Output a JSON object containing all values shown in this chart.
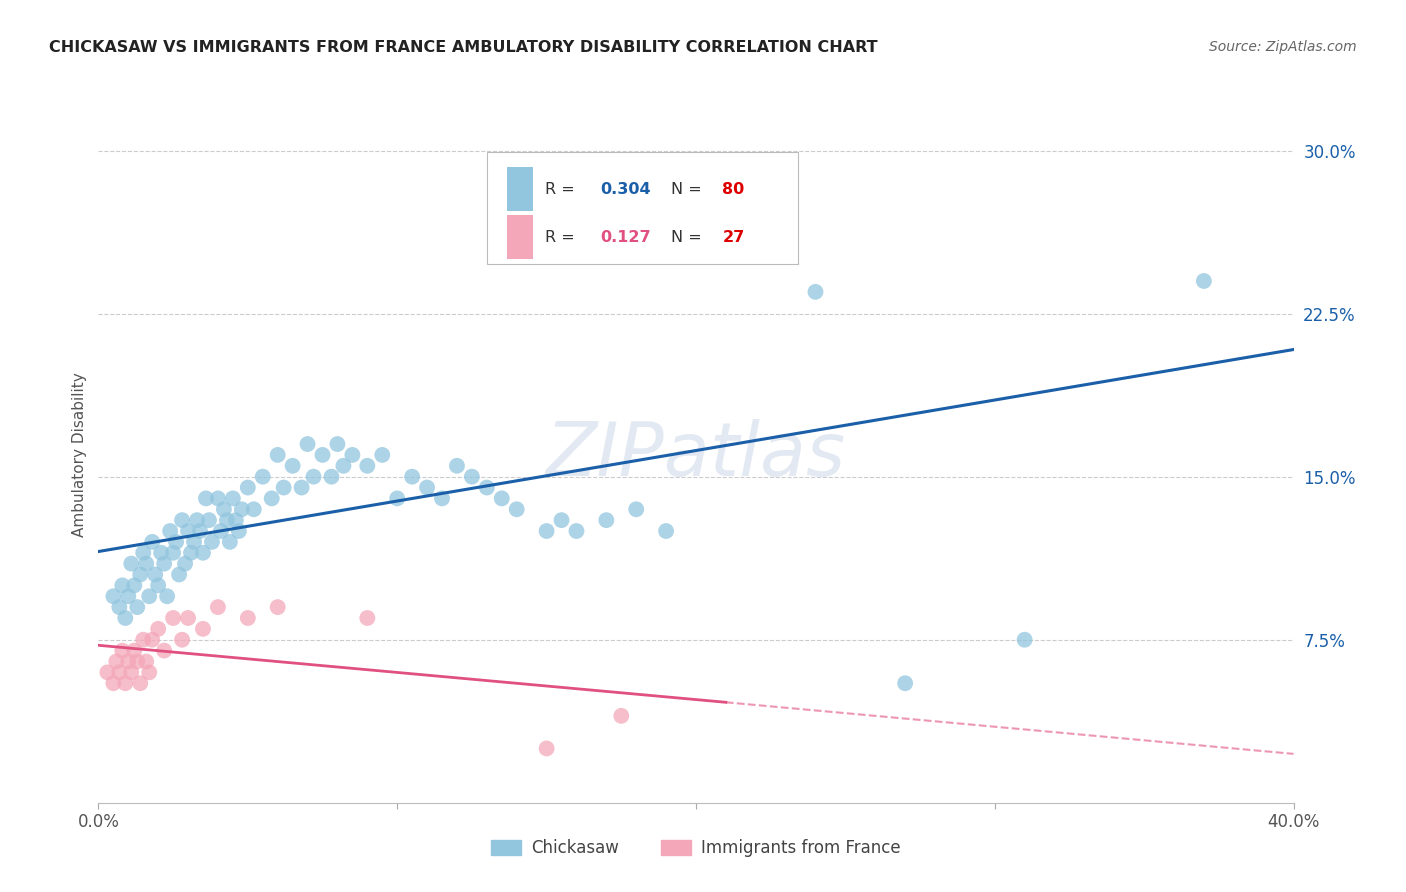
{
  "title": "CHICKASAW VS IMMIGRANTS FROM FRANCE AMBULATORY DISABILITY CORRELATION CHART",
  "source": "Source: ZipAtlas.com",
  "ylabel": "Ambulatory Disability",
  "xlim": [
    0.0,
    0.4
  ],
  "ylim": [
    0.0,
    0.32
  ],
  "yticks_right": [
    0.075,
    0.15,
    0.225,
    0.3
  ],
  "ytick_labels_right": [
    "7.5%",
    "15.0%",
    "22.5%",
    "30.0%"
  ],
  "background_color": "#ffffff",
  "watermark": "ZIPatlas",
  "blue_x": [
    0.005,
    0.007,
    0.008,
    0.009,
    0.01,
    0.011,
    0.012,
    0.013,
    0.014,
    0.015,
    0.016,
    0.017,
    0.018,
    0.019,
    0.02,
    0.021,
    0.022,
    0.023,
    0.024,
    0.025,
    0.026,
    0.027,
    0.028,
    0.029,
    0.03,
    0.031,
    0.032,
    0.033,
    0.034,
    0.035,
    0.036,
    0.037,
    0.038,
    0.04,
    0.041,
    0.042,
    0.043,
    0.044,
    0.045,
    0.046,
    0.047,
    0.048,
    0.05,
    0.052,
    0.055,
    0.058,
    0.06,
    0.062,
    0.065,
    0.068,
    0.07,
    0.072,
    0.075,
    0.078,
    0.08,
    0.082,
    0.085,
    0.09,
    0.095,
    0.1,
    0.105,
    0.11,
    0.115,
    0.12,
    0.125,
    0.13,
    0.135,
    0.14,
    0.15,
    0.155,
    0.16,
    0.17,
    0.18,
    0.19,
    0.2,
    0.21,
    0.24,
    0.27,
    0.31,
    0.37
  ],
  "blue_y": [
    0.095,
    0.09,
    0.1,
    0.085,
    0.095,
    0.11,
    0.1,
    0.09,
    0.105,
    0.115,
    0.11,
    0.095,
    0.12,
    0.105,
    0.1,
    0.115,
    0.11,
    0.095,
    0.125,
    0.115,
    0.12,
    0.105,
    0.13,
    0.11,
    0.125,
    0.115,
    0.12,
    0.13,
    0.125,
    0.115,
    0.14,
    0.13,
    0.12,
    0.14,
    0.125,
    0.135,
    0.13,
    0.12,
    0.14,
    0.13,
    0.125,
    0.135,
    0.145,
    0.135,
    0.15,
    0.14,
    0.16,
    0.145,
    0.155,
    0.145,
    0.165,
    0.15,
    0.16,
    0.15,
    0.165,
    0.155,
    0.16,
    0.155,
    0.16,
    0.14,
    0.15,
    0.145,
    0.14,
    0.155,
    0.15,
    0.145,
    0.14,
    0.135,
    0.125,
    0.13,
    0.125,
    0.13,
    0.135,
    0.125,
    0.27,
    0.26,
    0.235,
    0.055,
    0.075,
    0.24
  ],
  "pink_x": [
    0.003,
    0.005,
    0.006,
    0.007,
    0.008,
    0.009,
    0.01,
    0.011,
    0.012,
    0.013,
    0.014,
    0.015,
    0.016,
    0.017,
    0.018,
    0.02,
    0.022,
    0.025,
    0.028,
    0.03,
    0.035,
    0.04,
    0.05,
    0.06,
    0.09,
    0.15,
    0.175
  ],
  "pink_y": [
    0.06,
    0.055,
    0.065,
    0.06,
    0.07,
    0.055,
    0.065,
    0.06,
    0.07,
    0.065,
    0.055,
    0.075,
    0.065,
    0.06,
    0.075,
    0.08,
    0.07,
    0.085,
    0.075,
    0.085,
    0.08,
    0.09,
    0.085,
    0.09,
    0.085,
    0.025,
    0.04
  ],
  "blue_color": "#92c5de",
  "pink_color": "#f4a7b9",
  "blue_trend_color": "#1a5fa8",
  "pink_trend_color": "#e05080",
  "blue_R": "0.304",
  "blue_N": "80",
  "pink_R": "0.127",
  "pink_N": "27"
}
